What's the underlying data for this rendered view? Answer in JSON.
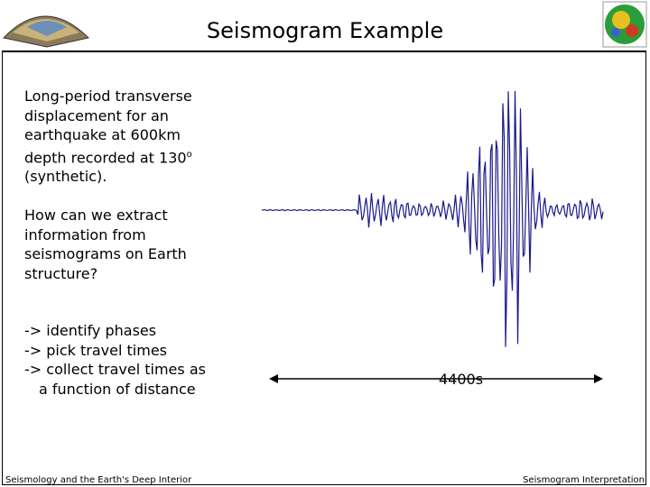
{
  "header": {
    "title": "Seismogram Example"
  },
  "body": {
    "description": {
      "text": "Long-period transverse displacement for an earthquake at 600km depth recorded at 130",
      "superscript": "o",
      "suffix": "(synthetic)."
    },
    "question": "How can we extract information from seismograms on Earth structure?",
    "steps": [
      "-> identify phases",
      "-> pick travel times",
      "-> collect travel times as",
      "a function of distance"
    ],
    "scale_label": "4400s"
  },
  "footer": {
    "left": "Seismology and the Earth's Deep Interior",
    "right": "Seismogram Interpretation"
  }
}
